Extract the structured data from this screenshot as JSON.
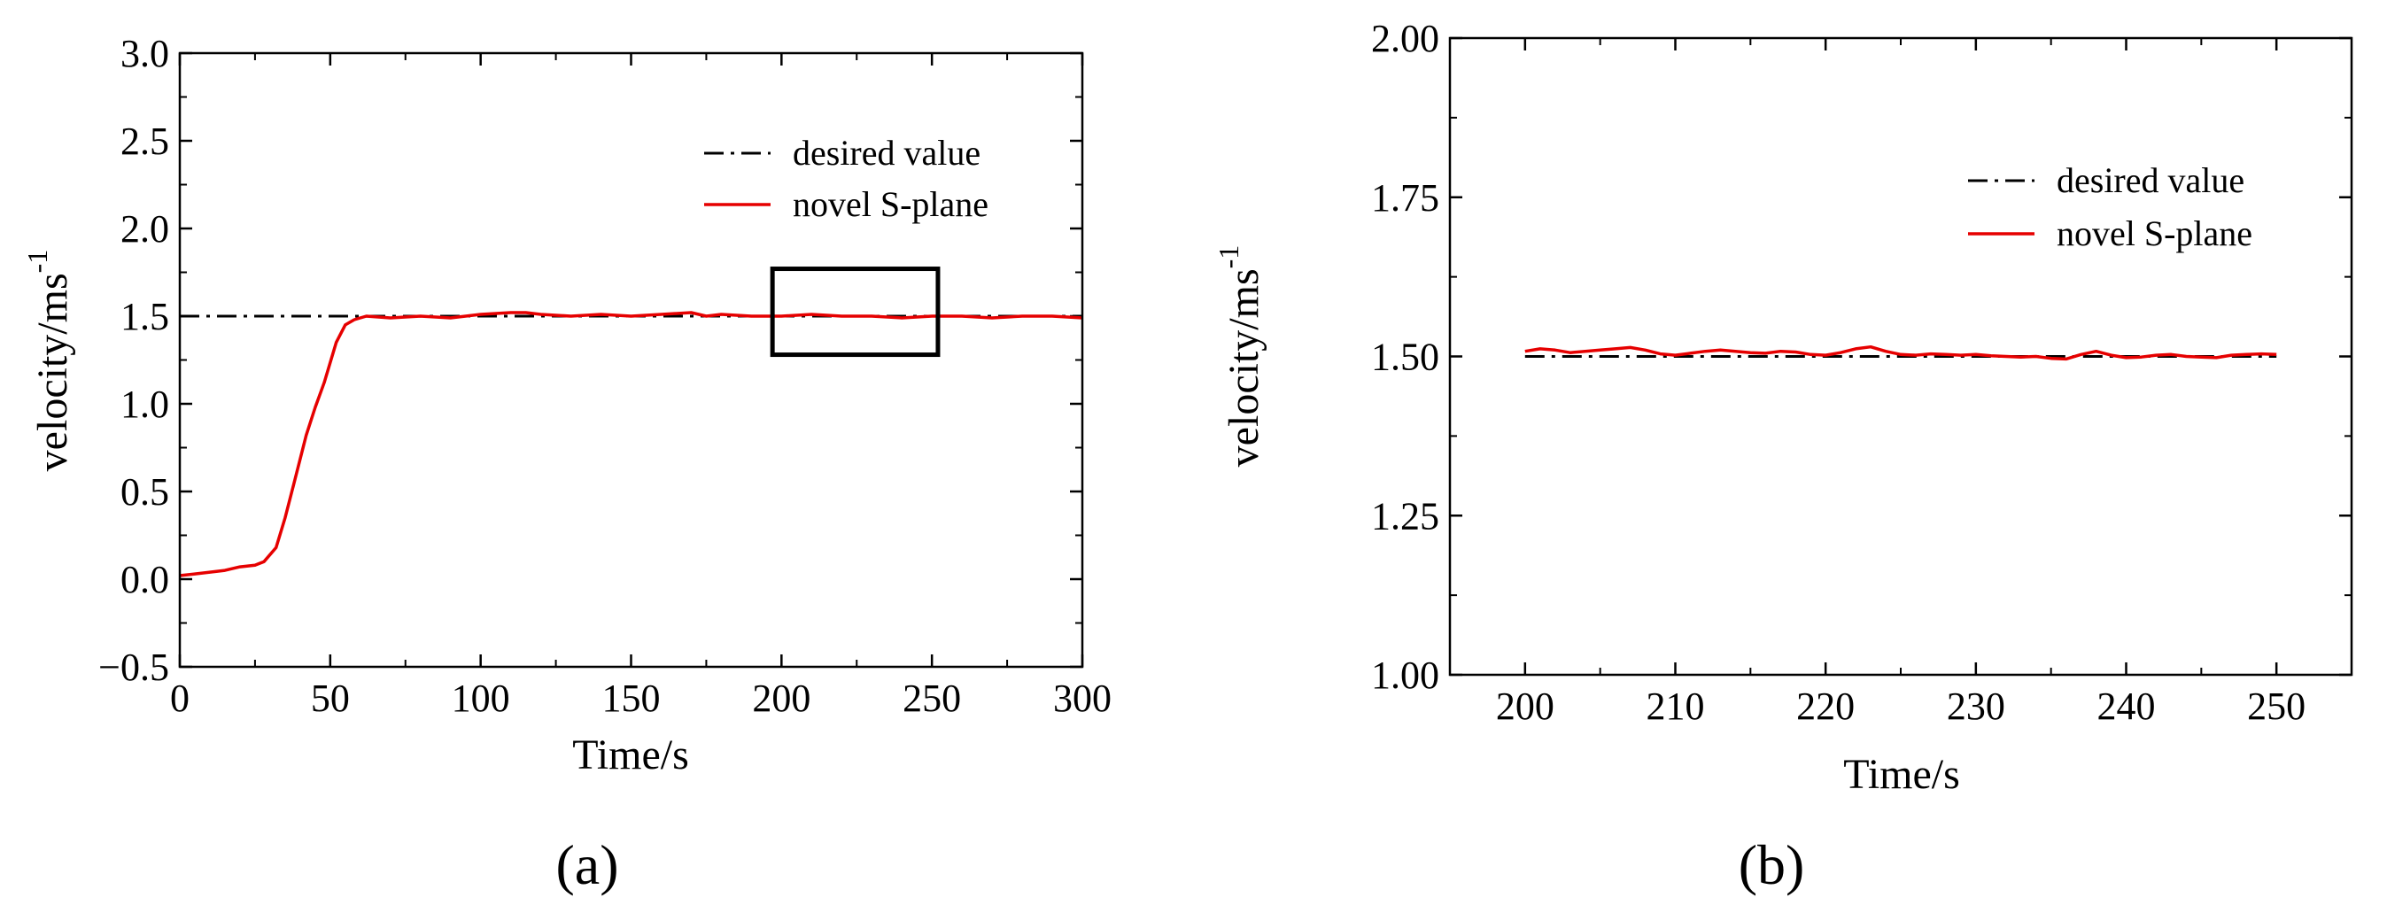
{
  "chart_data": [
    {
      "type": "line",
      "panel_label": "(a)",
      "xlabel": "Time/s",
      "ylabel": "velocity/ms",
      "ylabel_superscript": "-1",
      "xlim": [
        0,
        300
      ],
      "ylim": [
        -0.5,
        3.0
      ],
      "xticks": [
        0,
        50,
        100,
        150,
        200,
        250,
        300
      ],
      "yticks": [
        -0.5,
        0.0,
        0.5,
        1.0,
        1.5,
        2.0,
        2.5,
        3.0
      ],
      "ytick_labels": [
        "−0.5",
        "0.0",
        "0.5",
        "1.0",
        "1.5",
        "2.0",
        "2.5",
        "3.0"
      ],
      "legend_position": "top-right",
      "series": [
        {
          "name": "desired value",
          "color": "#000000",
          "style": "dash-dot",
          "x": [
            0,
            300
          ],
          "y": [
            1.5,
            1.5
          ]
        },
        {
          "name": "novel S-plane",
          "color": "#e60000",
          "style": "solid",
          "x": [
            0,
            5,
            10,
            15,
            20,
            25,
            28,
            32,
            35,
            38,
            42,
            45,
            48,
            52,
            55,
            58,
            62,
            70,
            80,
            90,
            100,
            110,
            115,
            120,
            130,
            140,
            150,
            160,
            170,
            175,
            180,
            190,
            200,
            210,
            220,
            230,
            240,
            250,
            260,
            270,
            280,
            290,
            300
          ],
          "y": [
            0.02,
            0.03,
            0.04,
            0.05,
            0.07,
            0.08,
            0.1,
            0.18,
            0.35,
            0.55,
            0.82,
            0.98,
            1.12,
            1.35,
            1.45,
            1.48,
            1.5,
            1.49,
            1.5,
            1.49,
            1.51,
            1.52,
            1.52,
            1.51,
            1.5,
            1.51,
            1.5,
            1.51,
            1.52,
            1.5,
            1.51,
            1.5,
            1.5,
            1.51,
            1.5,
            1.5,
            1.49,
            1.5,
            1.5,
            1.49,
            1.5,
            1.5,
            1.49
          ]
        }
      ],
      "annotations": [
        {
          "type": "zoom-box",
          "x_range": [
            197,
            252
          ],
          "y_range": [
            1.28,
            1.77
          ]
        }
      ]
    },
    {
      "type": "line",
      "panel_label": "(b)",
      "xlabel": "Time/s",
      "ylabel": "velocity/ms",
      "ylabel_superscript": "-1",
      "xlim": [
        195,
        255
      ],
      "ylim": [
        1.0,
        2.0
      ],
      "xticks": [
        200,
        210,
        220,
        230,
        240,
        250
      ],
      "yticks": [
        1.0,
        1.25,
        1.5,
        1.75,
        2.0
      ],
      "ytick_labels": [
        "1.00",
        "1.25",
        "1.50",
        "1.75",
        "2.00"
      ],
      "legend_position": "top-right",
      "series": [
        {
          "name": "desired value",
          "color": "#000000",
          "style": "dash-dot",
          "x": [
            200,
            250
          ],
          "y": [
            1.5,
            1.5
          ]
        },
        {
          "name": "novel S-plane",
          "color": "#e60000",
          "style": "solid",
          "x": [
            200,
            201,
            202,
            203,
            204,
            205,
            206,
            207,
            208,
            209,
            210,
            211,
            212,
            213,
            214,
            215,
            216,
            217,
            218,
            219,
            220,
            221,
            222,
            223,
            224,
            225,
            226,
            227,
            228,
            229,
            230,
            231,
            232,
            233,
            234,
            235,
            236,
            237,
            238,
            239,
            240,
            241,
            242,
            243,
            244,
            245,
            246,
            247,
            248,
            249,
            250
          ],
          "y": [
            1.508,
            1.512,
            1.51,
            1.506,
            1.508,
            1.51,
            1.512,
            1.514,
            1.51,
            1.504,
            1.502,
            1.505,
            1.508,
            1.51,
            1.508,
            1.506,
            1.505,
            1.508,
            1.507,
            1.503,
            1.502,
            1.506,
            1.512,
            1.515,
            1.508,
            1.503,
            1.502,
            1.504,
            1.503,
            1.502,
            1.503,
            1.501,
            1.5,
            1.499,
            1.5,
            1.497,
            1.496,
            1.503,
            1.508,
            1.502,
            1.498,
            1.499,
            1.502,
            1.503,
            1.5,
            1.499,
            1.498,
            1.502,
            1.503,
            1.504,
            1.503
          ]
        }
      ]
    }
  ]
}
